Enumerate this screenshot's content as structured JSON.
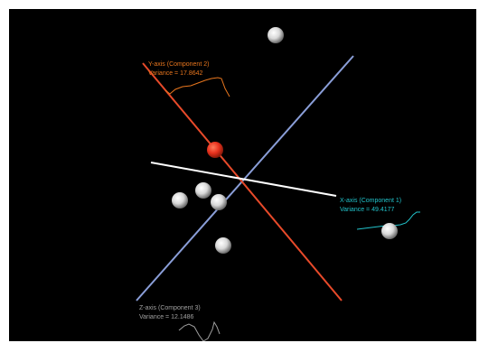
{
  "chart_data": {
    "type": "scatter",
    "title": "",
    "axes": [
      {
        "id": "x",
        "label_line1": "X-axis (Component 1)",
        "label_line2": "Variance = 49.4177",
        "variance": 49.4177,
        "color": "#22c4cc",
        "axis_color": "#ffffff"
      },
      {
        "id": "y",
        "label_line1": "Y-axis (Component 2)",
        "label_line2": "Variance = 17.8642",
        "variance": 17.8642,
        "color": "#e8761e",
        "axis_color": "#e84a2a"
      },
      {
        "id": "z",
        "label_line1": "Z-axis (Component 3)",
        "label_line2": "Variance = 12.1486",
        "variance": 12.1486,
        "color": "#a0a0a0",
        "axis_color": "#8a9ed8"
      }
    ],
    "points": [
      {
        "label": "",
        "highlighted": false
      },
      {
        "label": "",
        "highlighted": true
      },
      {
        "label": "",
        "highlighted": false
      },
      {
        "label": "",
        "highlighted": false
      },
      {
        "label": "",
        "highlighted": false
      },
      {
        "label": "",
        "highlighted": false
      },
      {
        "label": "",
        "highlighted": false
      }
    ],
    "background": "#000000",
    "point_color": "#e8e8e8",
    "highlight_color": "#e8321e",
    "grid": false,
    "legend": "none"
  }
}
